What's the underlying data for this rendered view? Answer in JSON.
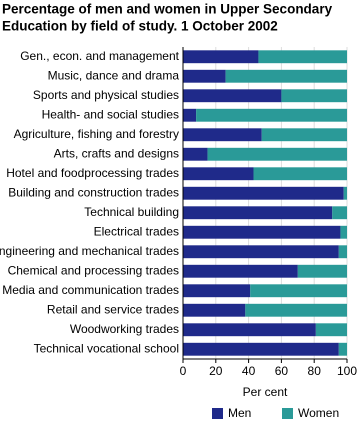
{
  "chart_data": {
    "type": "stacked-barh",
    "title": [
      "Percentage of men and women in Upper Secondary",
      "Education by field of study. 1 October 2002"
    ],
    "categories": [
      "Gen., econ. and management",
      "Music, dance and drama",
      "Sports and physical studies",
      "Health- and social studies",
      "Agriculture, fishing and forestry",
      "Arts, crafts and designs",
      "Hotel and foodprocessing trades",
      "Building and construction trades",
      "Technical building",
      "Electrical trades",
      "Engineering and mechanical trades",
      "Chemical and processing trades",
      "Media and communication trades",
      "Retail and service trades",
      "Woodworking trades",
      "Technical vocational school"
    ],
    "series": [
      {
        "name": "Men",
        "color": "#1f2a8a",
        "values": [
          46,
          26,
          60,
          8,
          48,
          15,
          43,
          98,
          91,
          96,
          95,
          70,
          41,
          38,
          81,
          95
        ]
      },
      {
        "name": "Women",
        "color": "#2a9a98",
        "values": [
          54,
          74,
          40,
          92,
          52,
          85,
          57,
          2,
          9,
          4,
          5,
          30,
          59,
          62,
          19,
          5
        ]
      }
    ],
    "xlabel": "Per cent",
    "xlim": [
      0,
      100
    ],
    "xticks": [
      0,
      20,
      40,
      60,
      80,
      100
    ],
    "grid": true
  }
}
